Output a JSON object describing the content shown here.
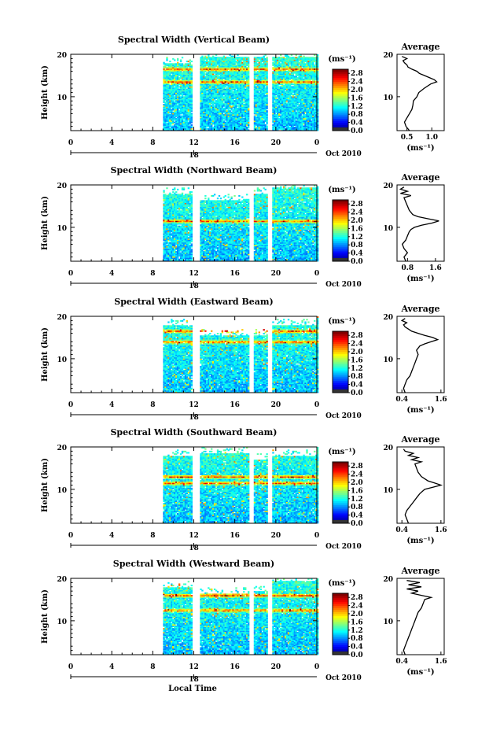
{
  "shared": {
    "xlabel": "Local Time",
    "ylabel": "Height (km)",
    "x_ticks": [
      "0",
      "4",
      "8",
      "12",
      "16",
      "20",
      "0"
    ],
    "y_ticks": [
      "10",
      "20"
    ],
    "date_label": "Oct 2010",
    "day_marker": "18",
    "colorbar_unit": "(ms⁻¹)",
    "colorbar_ticks": [
      "2.8",
      "2.4",
      "2.0",
      "1.6",
      "1.2",
      "0.8",
      "0.4",
      "0.0"
    ],
    "avg_title": "Average",
    "avg_xlabel": "(ms⁻¹)"
  },
  "chart_data": [
    {
      "type": "heatmap",
      "title": "Spectral Width (Vertical Beam)",
      "xlabel": "Local Time",
      "ylabel": "Height (km)",
      "xlim": [
        0,
        24
      ],
      "ylim": [
        2,
        20
      ],
      "clim": [
        0.0,
        3.0
      ],
      "data_start_hour": 9.0,
      "gaps_hours": [
        [
          11.9,
          12.6
        ],
        [
          17.4,
          17.9
        ],
        [
          19.2,
          19.7
        ]
      ],
      "top_height_km": [
        [
          9,
          12,
          18
        ],
        [
          12.6,
          17.4,
          19.5
        ],
        [
          17.9,
          19.2,
          19.5
        ],
        [
          19.7,
          24,
          19.5
        ]
      ],
      "enhanced_layers_km": [
        [
          16.5,
          0.5
        ],
        [
          13.5,
          0.4
        ]
      ],
      "profile": {
        "title": "Average",
        "xlabel": "(ms⁻¹)",
        "xticks": [
          0.5,
          1.0
        ],
        "xtick_labels": [
          "0.5",
          "1.0"
        ],
        "xlim": [
          0.3,
          1.25
        ],
        "height_km": [
          2,
          3,
          4,
          5,
          6,
          7,
          8,
          9,
          10,
          11,
          12,
          13,
          13.5,
          14,
          14.5,
          15,
          15.5,
          16,
          16.5,
          17,
          17.5,
          18,
          18.5,
          19,
          19.5
        ],
        "width_ms": [
          0.55,
          0.48,
          0.45,
          0.5,
          0.55,
          0.6,
          0.62,
          0.63,
          0.7,
          0.74,
          0.85,
          0.98,
          1.1,
          1.05,
          0.95,
          0.85,
          0.75,
          0.7,
          0.6,
          0.52,
          0.5,
          0.45,
          0.42,
          0.5,
          0.4
        ]
      }
    },
    {
      "type": "heatmap",
      "title": "Spectral Width (Northward Beam)",
      "xlabel": "Local Time",
      "ylabel": "Height (km)",
      "xlim": [
        0,
        24
      ],
      "ylim": [
        2,
        20
      ],
      "clim": [
        0.0,
        3.0
      ],
      "data_start_hour": 9.0,
      "gaps_hours": [
        [
          11.9,
          12.6
        ],
        [
          17.4,
          17.9
        ],
        [
          19.2,
          19.7
        ]
      ],
      "top_height_km": [
        [
          9,
          12,
          18
        ],
        [
          12.6,
          17.4,
          16.5
        ],
        [
          17.9,
          19.2,
          18
        ],
        [
          19.7,
          24,
          19.5
        ]
      ],
      "enhanced_layers_km": [
        [
          11.5,
          0.6
        ]
      ],
      "profile": {
        "title": "Average",
        "xlabel": "(ms⁻¹)",
        "xticks": [
          0.8,
          1.6
        ],
        "xtick_labels": [
          "0.8",
          "1.6"
        ],
        "xlim": [
          0.5,
          1.85
        ],
        "height_km": [
          2,
          3,
          4,
          5,
          6,
          7,
          8,
          9,
          9.5,
          10,
          10.5,
          11,
          11.5,
          12,
          12.5,
          13,
          14,
          15,
          16,
          17,
          17.5,
          18,
          18.5,
          19,
          19.5
        ],
        "width_ms": [
          0.75,
          0.7,
          0.8,
          0.7,
          0.65,
          0.75,
          0.8,
          0.85,
          0.9,
          1.0,
          1.2,
          1.5,
          1.7,
          1.4,
          1.1,
          0.95,
          0.85,
          0.8,
          0.75,
          0.7,
          0.9,
          0.6,
          0.8,
          0.6,
          0.7
        ]
      }
    },
    {
      "type": "heatmap",
      "title": "Spectral Width (Eastward Beam)",
      "xlabel": "Local Time",
      "ylabel": "Height (km)",
      "xlim": [
        0,
        24
      ],
      "ylim": [
        2,
        20
      ],
      "clim": [
        0.0,
        3.0
      ],
      "data_start_hour": 9.0,
      "gaps_hours": [
        [
          11.9,
          12.6
        ],
        [
          17.4,
          17.9
        ],
        [
          19.2,
          19.7
        ]
      ],
      "top_height_km": [
        [
          9,
          12,
          18
        ],
        [
          12.6,
          17.4,
          15.5
        ],
        [
          17.9,
          19.2,
          15.5
        ],
        [
          19.7,
          24,
          18
        ]
      ],
      "enhanced_layers_km": [
        [
          14.0,
          0.5
        ],
        [
          16.5,
          0.4
        ]
      ],
      "profile": {
        "title": "Average",
        "xlabel": "(ms⁻¹)",
        "xticks": [
          0.4,
          1.6
        ],
        "xtick_labels": [
          "0.4",
          "1.6"
        ],
        "xlim": [
          0.25,
          1.7
        ],
        "height_km": [
          2,
          3,
          4,
          5,
          6,
          7,
          8,
          9,
          10,
          11,
          12,
          13,
          13.5,
          14,
          14.5,
          15,
          15.5,
          16,
          16.5,
          17,
          17.5,
          18,
          18.5,
          19,
          19.5
        ],
        "width_ms": [
          0.5,
          0.45,
          0.5,
          0.55,
          0.65,
          0.7,
          0.75,
          0.8,
          0.85,
          0.9,
          0.85,
          0.95,
          1.1,
          1.3,
          1.5,
          1.35,
          1.1,
          0.9,
          0.7,
          0.6,
          0.5,
          0.45,
          0.55,
          0.4,
          0.5
        ]
      }
    },
    {
      "type": "heatmap",
      "title": "Spectral Width (Southward Beam)",
      "xlabel": "Local Time",
      "ylabel": "Height (km)",
      "xlim": [
        0,
        24
      ],
      "ylim": [
        2,
        20
      ],
      "clim": [
        0.0,
        3.0
      ],
      "data_start_hour": 9.0,
      "gaps_hours": [
        [
          11.9,
          12.6
        ],
        [
          17.4,
          17.9
        ],
        [
          19.2,
          19.7
        ]
      ],
      "top_height_km": [
        [
          9,
          12,
          18
        ],
        [
          12.6,
          17.4,
          18.5
        ],
        [
          17.9,
          19.2,
          17
        ],
        [
          19.7,
          24,
          18
        ]
      ],
      "enhanced_layers_km": [
        [
          11.5,
          0.6
        ],
        [
          13.0,
          0.4
        ]
      ],
      "profile": {
        "title": "Average",
        "xlabel": "(ms⁻¹)",
        "xticks": [
          0.4,
          1.6
        ],
        "xtick_labels": [
          "0.4",
          "1.6"
        ],
        "xlim": [
          0.25,
          1.7
        ],
        "height_km": [
          2,
          3,
          4,
          5,
          6,
          7,
          8,
          9,
          10,
          10.5,
          11,
          11.5,
          12,
          12.5,
          13,
          14,
          15,
          16,
          16.5,
          17,
          17.5,
          18,
          18.5,
          19,
          19.5
        ],
        "width_ms": [
          0.6,
          0.55,
          0.5,
          0.55,
          0.65,
          0.75,
          0.85,
          0.95,
          1.1,
          1.35,
          1.6,
          1.4,
          1.2,
          1.1,
          1.0,
          0.9,
          0.85,
          0.8,
          1.0,
          0.7,
          0.9,
          0.6,
          0.75,
          0.5,
          0.45
        ]
      }
    },
    {
      "type": "heatmap",
      "title": "Spectral Width (Westward Beam)",
      "xlabel": "Local Time",
      "ylabel": "Height (km)",
      "xlim": [
        0,
        24
      ],
      "ylim": [
        2,
        20
      ],
      "clim": [
        0.0,
        3.0
      ],
      "data_start_hour": 9.0,
      "gaps_hours": [
        [
          11.9,
          12.6
        ],
        [
          17.4,
          17.9
        ],
        [
          19.2,
          19.7
        ]
      ],
      "top_height_km": [
        [
          9,
          12,
          18
        ],
        [
          12.6,
          17.4,
          16.5
        ],
        [
          17.9,
          19.2,
          17
        ],
        [
          19.7,
          24,
          19.5
        ]
      ],
      "enhanced_layers_km": [
        [
          16.0,
          0.4
        ],
        [
          12.5,
          0.5
        ]
      ],
      "profile": {
        "title": "Average",
        "xlabel": "(ms⁻¹)",
        "xticks": [
          0.4,
          1.6
        ],
        "xtick_labels": [
          "0.4",
          "1.6"
        ],
        "xlim": [
          0.25,
          1.7
        ],
        "height_km": [
          2,
          3,
          4,
          5,
          6,
          7,
          8,
          9,
          10,
          11,
          12,
          13,
          14,
          15,
          15.5,
          16,
          16.5,
          17,
          17.5,
          18,
          18.5,
          19,
          19.5
        ],
        "width_ms": [
          0.5,
          0.45,
          0.5,
          0.55,
          0.6,
          0.65,
          0.7,
          0.75,
          0.8,
          0.85,
          0.9,
          1.0,
          1.05,
          1.1,
          1.3,
          1.0,
          0.7,
          0.9,
          0.55,
          1.0,
          0.6,
          0.95,
          0.55
        ]
      }
    }
  ]
}
